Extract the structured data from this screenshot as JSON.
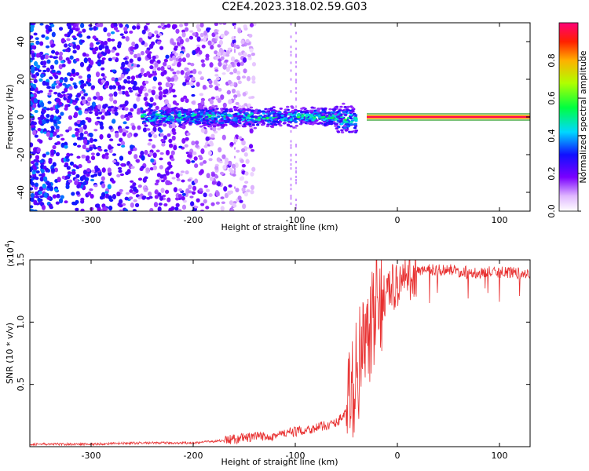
{
  "title": "C2E4.2023.318.02.59.G03",
  "colors": {
    "snr_line": "#e83030",
    "carrier_line": "#2a9d2a",
    "background": "#ffffff"
  },
  "chart_data": [
    {
      "type": "heatmap",
      "xlabel": "Height of straight line (km)",
      "ylabel": "Frequency (Hz)",
      "xlim": [
        -360,
        130
      ],
      "ylim": [
        -50,
        50
      ],
      "x_ticks": [
        -300,
        -200,
        -100,
        0,
        100
      ],
      "y_ticks": [
        -40,
        -20,
        0,
        20,
        40
      ],
      "x_tick_labels": [
        "-300",
        "-200",
        "-100",
        "0",
        "100"
      ],
      "y_tick_labels": [
        "-40",
        "-20",
        "0",
        "20",
        "40"
      ],
      "colorbar": {
        "label": "Normalized spectral amplitude",
        "range": [
          0,
          1
        ],
        "ticks": [
          0.0,
          0.2,
          0.4,
          0.6,
          0.8
        ],
        "tick_labels": [
          "0.0",
          "0.2",
          "0.4",
          "0.6",
          "0.8"
        ],
        "colormap": "rainbow"
      },
      "regions": [
        {
          "x": [
            -360,
            -250
          ],
          "y": [
            -50,
            50
          ],
          "amplitude": [
            0.1,
            0.3
          ],
          "note": "broadband noise"
        },
        {
          "x": [
            -250,
            -40
          ],
          "y": [
            -6,
            6
          ],
          "amplitude": [
            0.2,
            0.6
          ],
          "note": "signal band"
        },
        {
          "x": [
            -40,
            130
          ],
          "y": [
            -1.5,
            1.5
          ],
          "amplitude": [
            0.8,
            1.0
          ],
          "note": "stable carrier"
        }
      ],
      "carrier_frequency": 0,
      "carrier_x_range": [
        -30,
        130
      ]
    },
    {
      "type": "line",
      "xlabel": "Height of straight line (km)",
      "ylabel": "SNR (10 * v/v)",
      "y_multiplier_label": "(x10",
      "y_multiplier_exp": "4",
      "xlim": [
        -360,
        130
      ],
      "ylim": [
        0,
        1.5
      ],
      "x_ticks": [
        -300,
        -200,
        -100,
        0,
        100
      ],
      "y_ticks": [
        0.5,
        1.0,
        1.5
      ],
      "x_tick_labels": [
        "-300",
        "-200",
        "-100",
        "0",
        "100"
      ],
      "y_tick_labels": [
        "0.5",
        "1.0",
        "1.5"
      ],
      "series": [
        {
          "x": [
            -360,
            -300,
            -250,
            -200,
            -170,
            -150,
            -120,
            -100,
            -80,
            -60,
            -50,
            -45,
            -40,
            -35,
            -30,
            -25,
            -20,
            -15,
            -10,
            0,
            10,
            20,
            30,
            50,
            70,
            90,
            110,
            130
          ],
          "values": [
            0.02,
            0.02,
            0.03,
            0.03,
            0.05,
            0.07,
            0.09,
            0.12,
            0.15,
            0.19,
            0.28,
            0.42,
            0.6,
            0.75,
            0.8,
            0.95,
            1.1,
            1.2,
            1.25,
            1.3,
            1.35,
            1.4,
            1.42,
            1.42,
            1.4,
            1.4,
            1.4,
            1.38
          ]
        }
      ]
    }
  ]
}
